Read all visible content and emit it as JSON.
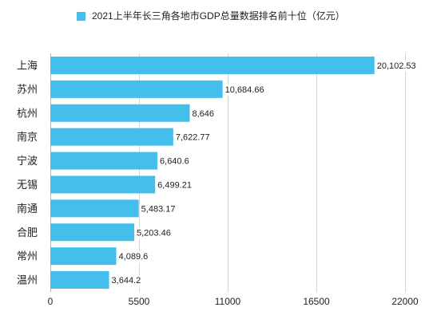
{
  "chart_data": {
    "type": "bar",
    "orientation": "horizontal",
    "categories": [
      "上海",
      "苏州",
      "杭州",
      "南京",
      "宁波",
      "无锡",
      "南通",
      "合肥",
      "常州",
      "温州"
    ],
    "series": [
      {
        "name": "2021上半年长三角各地市GDP总量数据排名前十位（亿元）",
        "values": [
          20102.53,
          10684.66,
          8646,
          7622.77,
          6640.6,
          6499.21,
          5483.17,
          5203.46,
          4089.6,
          3644.2
        ],
        "data_labels": [
          "20,102.53",
          "10,684.66",
          "8,646",
          "7,622.77",
          "6,640.6",
          "6,499.21",
          "5,483.17",
          "5,203.46",
          "4,089.6",
          "3,644.2"
        ],
        "color": "#44BFEC"
      }
    ],
    "xlim": [
      0,
      22000
    ],
    "xticks": [
      0,
      5500,
      11000,
      16500,
      22000
    ],
    "xtick_labels": [
      "0",
      "5500",
      "11000",
      "16500",
      "22000"
    ],
    "grid": "vertical",
    "legend": "top"
  }
}
